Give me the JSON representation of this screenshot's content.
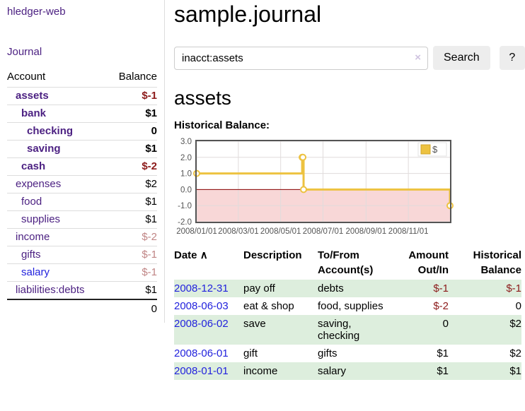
{
  "app": {
    "brand": "hledger-web",
    "nav": {
      "journal": "Journal"
    }
  },
  "sidebar": {
    "columns": {
      "account": "Account",
      "balance": "Balance"
    },
    "accounts": [
      {
        "name": "assets",
        "balance": "$-1"
      },
      {
        "name": "bank",
        "balance": "$1"
      },
      {
        "name": "checking",
        "balance": "0"
      },
      {
        "name": "saving",
        "balance": "$1"
      },
      {
        "name": "cash",
        "balance": "$-2"
      },
      {
        "name": "expenses",
        "balance": "$2"
      },
      {
        "name": "food",
        "balance": "$1"
      },
      {
        "name": "supplies",
        "balance": "$1"
      },
      {
        "name": "income",
        "balance": "$-2"
      },
      {
        "name": "gifts",
        "balance": "$-1"
      },
      {
        "name": "salary",
        "balance": "$-1"
      },
      {
        "name": "liabilities:debts",
        "balance": "$1"
      }
    ],
    "total": "0"
  },
  "header": {
    "title": "sample.journal"
  },
  "search": {
    "value": "inacct:assets",
    "clear": "×",
    "button": "Search",
    "help": "?"
  },
  "account": {
    "heading": "assets",
    "chart_title": "Historical Balance:"
  },
  "chart_data": {
    "type": "line",
    "step": true,
    "title": "Historical Balance:",
    "x": [
      "2008-01-01",
      "2008-06-01",
      "2008-06-02",
      "2008-06-03",
      "2008-12-31"
    ],
    "series": [
      {
        "name": "$",
        "color": "#edc240",
        "values": [
          1,
          2,
          2,
          0,
          -1
        ]
      }
    ],
    "x_tick_labels": [
      "2008/01/01",
      "2008/03/01",
      "2008/05/01",
      "2008/07/01",
      "2008/09/01",
      "2008/11/01"
    ],
    "y_tick_labels": [
      "3.0",
      "2.0",
      "1.0",
      "0.0",
      "-1.0",
      "-2.0"
    ],
    "xlim": [
      "2008-01-01",
      "2008-12-31"
    ],
    "ylim": [
      -2,
      3
    ],
    "grid": true,
    "legend": {
      "label": "$",
      "position": "top-right"
    },
    "negative_region_color": "#f8d7d7",
    "zero_line_color": "#8b0000"
  },
  "register": {
    "columns": {
      "date": "Date",
      "sort_indicator": "∧",
      "description": "Description",
      "accounts": "To/From Account(s)",
      "amount": "Amount Out/In",
      "balance": "Historical Balance"
    },
    "rows": [
      {
        "date": "2008-12-31",
        "description": "pay off",
        "accounts": "debts",
        "amount": "$-1",
        "balance": "$-1"
      },
      {
        "date": "2008-06-03",
        "description": "eat & shop",
        "accounts": "food, supplies",
        "amount": "$-2",
        "balance": "0"
      },
      {
        "date": "2008-06-02",
        "description": "save",
        "accounts": "saving, checking",
        "amount": "0",
        "balance": "$2"
      },
      {
        "date": "2008-06-01",
        "description": "gift",
        "accounts": "gifts",
        "amount": "$1",
        "balance": "$2"
      },
      {
        "date": "2008-01-01",
        "description": "income",
        "accounts": "salary",
        "amount": "$1",
        "balance": "$1"
      }
    ]
  }
}
